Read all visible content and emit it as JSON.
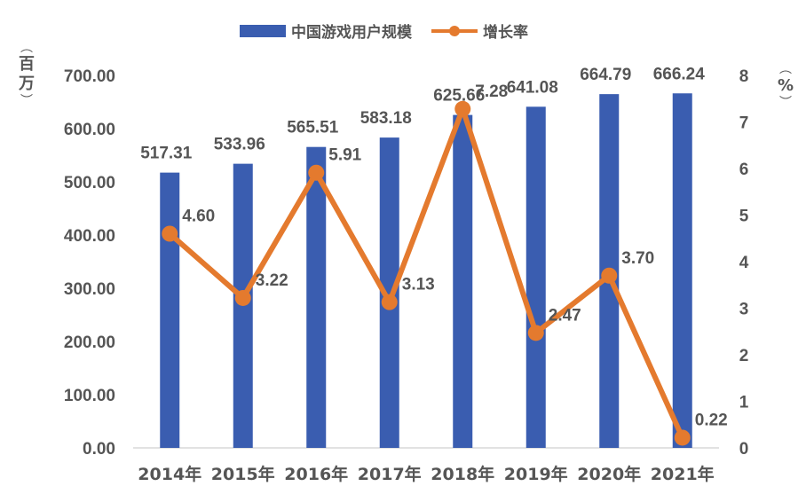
{
  "legend": {
    "bar_label": "中国游戏用户规模",
    "line_label": "增长率"
  },
  "axes": {
    "left_unit": "百万",
    "right_unit": "%"
  },
  "chart_data": {
    "type": "bar",
    "categories": [
      "2014年",
      "2015年",
      "2016年",
      "2017年",
      "2018年",
      "2019年",
      "2020年",
      "2021年"
    ],
    "series": [
      {
        "name": "中国游戏用户规模",
        "type": "bar",
        "axis": "left",
        "values": [
          517.31,
          533.96,
          565.51,
          583.18,
          625.66,
          641.08,
          664.79,
          666.24
        ],
        "labels": [
          "517.31",
          "533.96",
          "565.51",
          "583.18",
          "625.66",
          "641.08",
          "664.79",
          "666.24"
        ]
      },
      {
        "name": "增长率",
        "type": "line",
        "axis": "right",
        "values": [
          4.6,
          3.22,
          5.91,
          3.13,
          7.28,
          2.47,
          3.7,
          0.22
        ],
        "labels": [
          "4.60",
          "3.22",
          "5.91",
          "3.13",
          "7.28",
          "2.47",
          "3.70",
          "0.22"
        ]
      }
    ],
    "y_left": {
      "range": [
        0,
        700
      ],
      "ticks": [
        "0.00",
        "100.00",
        "200.00",
        "300.00",
        "400.00",
        "500.00",
        "600.00",
        "700.00"
      ]
    },
    "y_right": {
      "range": [
        0,
        8
      ],
      "ticks": [
        "0",
        "1",
        "2",
        "3",
        "4",
        "5",
        "6",
        "7",
        "8"
      ]
    },
    "grid": false,
    "legend_position": "top",
    "colors": {
      "bar": "#3a5db0",
      "line": "#e47a2e",
      "text": "#555555",
      "axis": "#d9d9d9"
    }
  }
}
